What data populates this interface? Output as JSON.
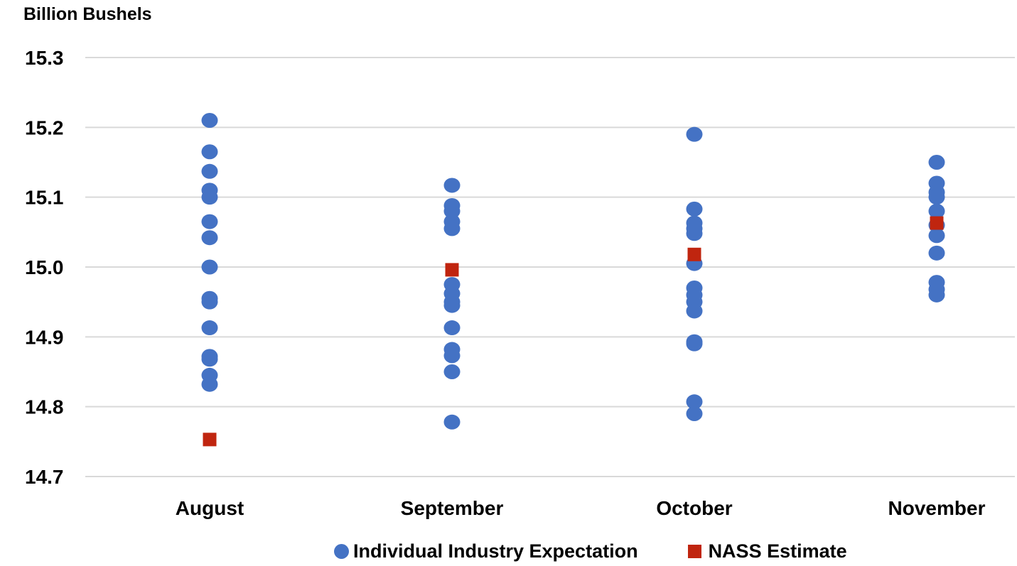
{
  "chart_data": {
    "type": "scatter",
    "title": "",
    "ylabel": "Billion Bushels",
    "xlabel": "",
    "categories": [
      "August",
      "September",
      "October",
      "November"
    ],
    "ylim": [
      14.7,
      15.3
    ],
    "yticks": [
      "15.3",
      "15.2",
      "15.1",
      "15.0",
      "14.9",
      "14.8",
      "14.7"
    ],
    "ytick_values": [
      15.3,
      15.2,
      15.1,
      15.0,
      14.9,
      14.8,
      14.7
    ],
    "grid": "horizontal",
    "legend_position": "bottom",
    "series": [
      {
        "name": "Individual Industry Expectation",
        "color": "#4472c4",
        "marker": "circle",
        "values": [
          [
            15.21,
            15.165,
            15.137,
            15.11,
            15.1,
            15.065,
            15.042,
            15.0,
            14.955,
            14.95,
            14.913,
            14.872,
            14.868,
            14.845,
            14.832
          ],
          [
            15.117,
            15.088,
            15.08,
            15.065,
            15.055,
            14.975,
            14.962,
            14.95,
            14.945,
            14.913,
            14.882,
            14.873,
            14.85,
            14.778
          ],
          [
            15.19,
            15.083,
            15.063,
            15.055,
            15.048,
            15.005,
            14.97,
            14.96,
            14.95,
            14.937,
            14.893,
            14.89,
            14.807,
            14.79
          ],
          [
            15.15,
            15.12,
            15.107,
            15.1,
            15.08,
            15.06,
            15.045,
            15.02,
            14.978,
            14.968,
            14.96
          ]
        ]
      },
      {
        "name": "NASS Estimate",
        "color": "#c0250f",
        "marker": "square",
        "values": [
          14.753,
          14.996,
          15.018,
          15.063
        ]
      }
    ]
  }
}
